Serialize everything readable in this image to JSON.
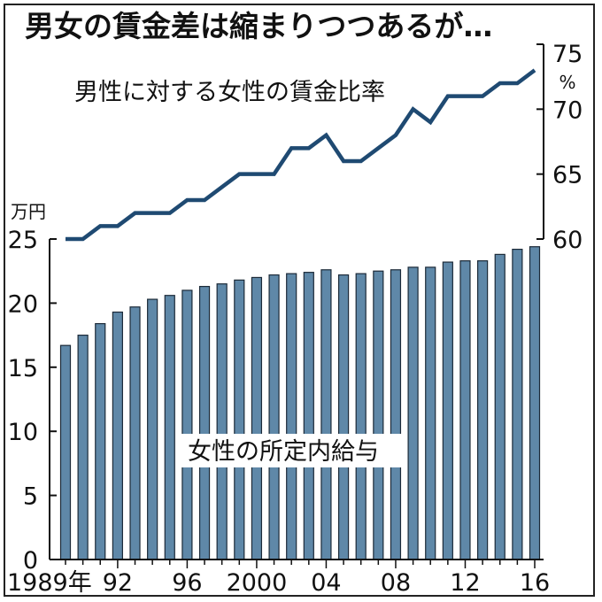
{
  "chart_data": {
    "type": "bar+line",
    "title": "男女の賃金差は縮まりつつあるが…",
    "bar_series": {
      "name": "女性の所定内給与",
      "unit": "万円",
      "color": "#5f88a8",
      "edge_color": "#1c2a38",
      "x": [
        "1989",
        "1990",
        "1991",
        "1992",
        "1993",
        "1994",
        "1995",
        "1996",
        "1997",
        "1998",
        "1999",
        "2000",
        "2001",
        "2002",
        "2003",
        "2004",
        "2005",
        "2006",
        "2007",
        "2008",
        "2009",
        "2010",
        "2011",
        "2012",
        "2013",
        "2014",
        "2015",
        "2016"
      ],
      "values": [
        16.7,
        17.5,
        18.4,
        19.3,
        19.7,
        20.3,
        20.6,
        21.0,
        21.3,
        21.5,
        21.8,
        22.0,
        22.2,
        22.3,
        22.4,
        22.6,
        22.2,
        22.3,
        22.5,
        22.6,
        22.8,
        22.8,
        23.2,
        23.3,
        23.3,
        23.8,
        24.2,
        24.4
      ],
      "ylim": [
        0,
        25
      ],
      "yticks": [
        "0",
        "5",
        "10",
        "15",
        "20",
        "25"
      ]
    },
    "line_series": {
      "name": "男性に対する女性の賃金比率",
      "unit": "%",
      "color": "#1f4a72",
      "x": [
        "1989",
        "1990",
        "1991",
        "1992",
        "1993",
        "1994",
        "1995",
        "1996",
        "1997",
        "1998",
        "1999",
        "2000",
        "2001",
        "2002",
        "2003",
        "2004",
        "2005",
        "2006",
        "2007",
        "2008",
        "2009",
        "2010",
        "2011",
        "2012",
        "2013",
        "2014",
        "2015",
        "2016"
      ],
      "values": [
        60,
        60,
        61,
        61,
        62,
        62,
        62,
        63,
        63,
        64,
        65,
        65,
        65,
        67,
        67,
        68,
        66,
        66,
        67,
        68,
        70,
        69,
        71,
        71,
        71,
        72,
        72,
        73
      ],
      "ylim": [
        60,
        75
      ],
      "yticks": [
        "60",
        "65",
        "70",
        "75"
      ]
    },
    "x_tick_labels": [
      {
        "index": 0,
        "label": "1989年"
      },
      {
        "index": 3,
        "label": "92"
      },
      {
        "index": 7,
        "label": "96"
      },
      {
        "index": 11,
        "label": "2000"
      },
      {
        "index": 15,
        "label": "04"
      },
      {
        "index": 19,
        "label": "08"
      },
      {
        "index": 23,
        "label": "12"
      },
      {
        "index": 27,
        "label": "16"
      }
    ]
  }
}
